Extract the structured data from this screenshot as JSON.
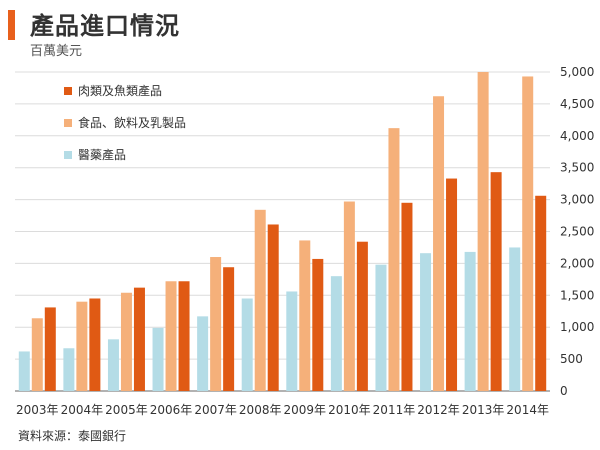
{
  "header": {
    "title": "產品進口情況",
    "unit": "百萬美元"
  },
  "footer": {
    "source": "資料來源：泰國銀行"
  },
  "colors": {
    "accent": "#e8601c",
    "grid": "#dcdcdc",
    "axis": "#666666"
  },
  "chart_data": {
    "type": "bar",
    "title": "產品進口情況",
    "subtitle": "百萬美元",
    "xlabel": "",
    "ylabel": "",
    "ylim": [
      0,
      5000
    ],
    "yticks": [
      0,
      500,
      1000,
      1500,
      2000,
      2500,
      3000,
      3500,
      4000,
      4500,
      5000
    ],
    "ytick_labels": [
      "0",
      "500",
      "1,000",
      "1,500",
      "2,000",
      "2,500",
      "3,000",
      "3,500",
      "4,000",
      "4,500",
      "5,000"
    ],
    "y_axis_side": "right",
    "grid": true,
    "legend_placement": "top-left",
    "categories": [
      "2003年",
      "2004年",
      "2005年",
      "2006年",
      "2007年",
      "2008年",
      "2009年",
      "2010年",
      "2011年",
      "2012年",
      "2013年",
      "2014年"
    ],
    "series": [
      {
        "name": "醫藥產品",
        "color": "#b4dce6",
        "values": [
          620,
          670,
          810,
          990,
          1170,
          1450,
          1560,
          1800,
          1980,
          2160,
          2180,
          2250
        ]
      },
      {
        "name": "食品、飲料及乳製品",
        "color": "#f5b07a",
        "values": [
          1140,
          1400,
          1540,
          1720,
          2100,
          2840,
          2360,
          2970,
          4120,
          4620,
          5000,
          4930
        ]
      },
      {
        "name": "肉類及魚類產品",
        "color": "#e05a14",
        "values": [
          1310,
          1450,
          1620,
          1720,
          1940,
          2610,
          2070,
          2340,
          2950,
          3330,
          3430,
          3060
        ]
      }
    ],
    "legend_order": [
      "肉類及魚類產品",
      "食品、飲料及乳製品",
      "醫藥產品"
    ]
  }
}
